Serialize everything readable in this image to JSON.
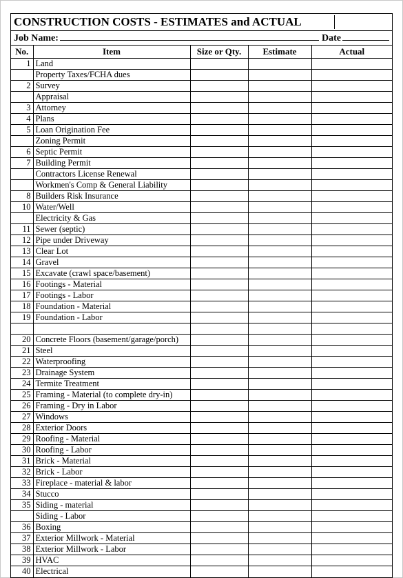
{
  "title": "CONSTRUCTION COSTS - ESTIMATES and ACTUAL",
  "jobLabel": "Job Name:",
  "dateLabel": "Date",
  "columns": {
    "no": "No.",
    "item": "Item",
    "size": "Size or Qty.",
    "estimate": "Estimate",
    "actual": "Actual"
  },
  "rows": [
    {
      "no": "1",
      "item": "Land"
    },
    {
      "no": "",
      "item": "Property Taxes/FCHA dues"
    },
    {
      "no": "2",
      "item": "Survey"
    },
    {
      "no": "",
      "item": "Appraisal"
    },
    {
      "no": "3",
      "item": "Attorney"
    },
    {
      "no": "4",
      "item": "Plans"
    },
    {
      "no": "5",
      "item": "Loan Origination Fee"
    },
    {
      "no": "",
      "item": "Zoning Permit"
    },
    {
      "no": "6",
      "item": "Septic Permit"
    },
    {
      "no": "7",
      "item": "Building Permit"
    },
    {
      "no": "",
      "item": "Contractors License Renewal"
    },
    {
      "no": "",
      "item": "Workmen's Comp & General Liability"
    },
    {
      "no": "8",
      "item": "Builders Risk Insurance"
    },
    {
      "no": "10",
      "item": "Water/Well"
    },
    {
      "no": "",
      "item": "Electricity & Gas"
    },
    {
      "no": "11",
      "item": "Sewer (septic)"
    },
    {
      "no": "12",
      "item": "Pipe under Driveway"
    },
    {
      "no": "13",
      "item": "Clear Lot"
    },
    {
      "no": "14",
      "item": "Gravel"
    },
    {
      "no": "15",
      "item": "Excavate (crawl space/basement)"
    },
    {
      "no": "16",
      "item": "Footings - Material"
    },
    {
      "no": "17",
      "item": "Footings - Labor"
    },
    {
      "no": "18",
      "item": "Foundation - Material"
    },
    {
      "no": "19",
      "item": "Foundation - Labor"
    },
    {
      "no": "",
      "item": ""
    },
    {
      "no": "20",
      "item": "Concrete Floors (basement/garage/porch)"
    },
    {
      "no": "21",
      "item": "Steel"
    },
    {
      "no": "22",
      "item": "Waterproofing"
    },
    {
      "no": "23",
      "item": "Drainage System"
    },
    {
      "no": "24",
      "item": "Termite Treatment"
    },
    {
      "no": "25",
      "item": "Framing - Material (to complete dry-in)"
    },
    {
      "no": "26",
      "item": "Framing - Dry in Labor"
    },
    {
      "no": "27",
      "item": "Windows"
    },
    {
      "no": "28",
      "item": "Exterior Doors"
    },
    {
      "no": "29",
      "item": "Roofing - Material"
    },
    {
      "no": "30",
      "item": "Roofing - Labor"
    },
    {
      "no": "31",
      "item": "Brick - Material"
    },
    {
      "no": "32",
      "item": "Brick - Labor"
    },
    {
      "no": "33",
      "item": "Fireplace - material & labor"
    },
    {
      "no": "34",
      "item": "Stucco"
    },
    {
      "no": "35",
      "item": "Siding - material"
    },
    {
      "no": "",
      "item": "Siding - Labor"
    },
    {
      "no": "36",
      "item": "Boxing"
    },
    {
      "no": "37",
      "item": "Exterior Millwork - Material"
    },
    {
      "no": "38",
      "item": "Exterior Millwork - Labor"
    },
    {
      "no": "39",
      "item": "HVAC"
    },
    {
      "no": "40",
      "item": "Electrical"
    }
  ]
}
